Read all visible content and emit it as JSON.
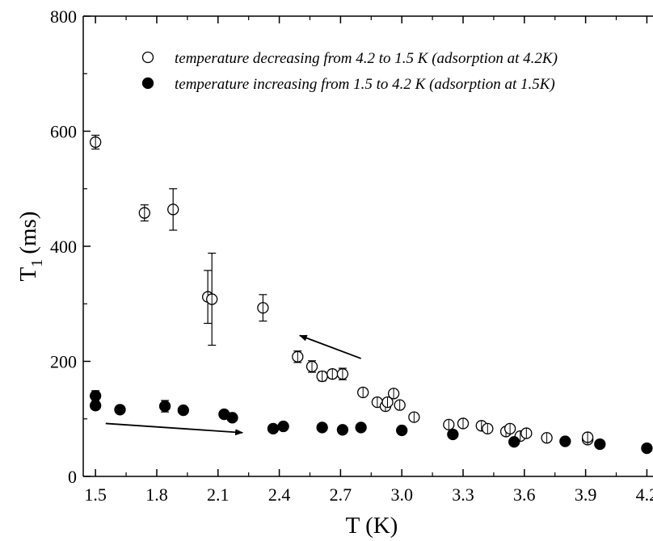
{
  "chart_data": {
    "type": "scatter",
    "xlabel": "T (K)",
    "ylabel_main": "T",
    "ylabel_sub": "1",
    "ylabel_unit": "(ms)",
    "xlim": [
      1.44,
      4.23
    ],
    "ylim": [
      0,
      800
    ],
    "xticks": [
      "1.5",
      "1.8",
      "2.1",
      "2.4",
      "2.7",
      "3.0",
      "3.3",
      "3.6",
      "3.9",
      "4.2"
    ],
    "yticks": [
      "0",
      "200",
      "400",
      "600",
      "800"
    ],
    "grid": false,
    "legend_position": "top",
    "series": [
      {
        "name": "temperature decreasing from 4.2 to 1.5 K",
        "name_suffix": "(adsorption at 4.2K)",
        "marker": "open-circle",
        "points": [
          {
            "x": 1.5,
            "y": 581,
            "err": 12
          },
          {
            "x": 1.74,
            "y": 458,
            "err": 14
          },
          {
            "x": 1.88,
            "y": 464,
            "err": 36
          },
          {
            "x": 2.05,
            "y": 312,
            "err": 46
          },
          {
            "x": 2.07,
            "y": 308,
            "err": 80
          },
          {
            "x": 2.32,
            "y": 293,
            "err": 23
          },
          {
            "x": 2.49,
            "y": 208,
            "err": 10
          },
          {
            "x": 2.56,
            "y": 191,
            "err": 10
          },
          {
            "x": 2.61,
            "y": 174,
            "err": 8
          },
          {
            "x": 2.66,
            "y": 178,
            "err": 7
          },
          {
            "x": 2.71,
            "y": 178,
            "err": 10
          },
          {
            "x": 2.81,
            "y": 146,
            "err": 5
          },
          {
            "x": 2.88,
            "y": 129,
            "err": 5
          },
          {
            "x": 2.92,
            "y": 122,
            "err": 6
          },
          {
            "x": 2.93,
            "y": 129,
            "err": 5
          },
          {
            "x": 2.96,
            "y": 144,
            "err": 5
          },
          {
            "x": 2.99,
            "y": 124,
            "err": 5
          },
          {
            "x": 3.06,
            "y": 103,
            "err": 4
          },
          {
            "x": 3.23,
            "y": 90,
            "err": 4
          },
          {
            "x": 3.3,
            "y": 92,
            "err": 4
          },
          {
            "x": 3.39,
            "y": 88,
            "err": 4
          },
          {
            "x": 3.42,
            "y": 83,
            "err": 3
          },
          {
            "x": 3.51,
            "y": 78,
            "err": 3
          },
          {
            "x": 3.53,
            "y": 83,
            "err": 4
          },
          {
            "x": 3.58,
            "y": 70,
            "err": 3
          },
          {
            "x": 3.61,
            "y": 75,
            "err": 3
          },
          {
            "x": 3.71,
            "y": 67,
            "err": 3
          },
          {
            "x": 3.91,
            "y": 64,
            "err": 3
          },
          {
            "x": 3.91,
            "y": 68,
            "err": 3
          }
        ]
      },
      {
        "name": "temperature increasing from 1.5 to 4.2 K",
        "name_suffix": "(adsorption at 1.5K)",
        "marker": "filled-circle",
        "points": [
          {
            "x": 1.5,
            "y": 123,
            "err": 6
          },
          {
            "x": 1.5,
            "y": 140,
            "err": 9
          },
          {
            "x": 1.62,
            "y": 116,
            "err": 5
          },
          {
            "x": 1.84,
            "y": 122,
            "err": 10
          },
          {
            "x": 1.93,
            "y": 115,
            "err": 6
          },
          {
            "x": 2.13,
            "y": 108,
            "err": 4
          },
          {
            "x": 2.17,
            "y": 102,
            "err": 4
          },
          {
            "x": 2.37,
            "y": 83,
            "err": 3
          },
          {
            "x": 2.42,
            "y": 87,
            "err": 4
          },
          {
            "x": 2.61,
            "y": 85,
            "err": 3
          },
          {
            "x": 2.71,
            "y": 81,
            "err": 3
          },
          {
            "x": 2.8,
            "y": 85,
            "err": 4
          },
          {
            "x": 3.0,
            "y": 80,
            "err": 3
          },
          {
            "x": 3.25,
            "y": 73,
            "err": 3
          },
          {
            "x": 3.55,
            "y": 60,
            "err": 3
          },
          {
            "x": 3.8,
            "y": 61,
            "err": 3
          },
          {
            "x": 3.97,
            "y": 56,
            "err": 3
          },
          {
            "x": 4.2,
            "y": 49,
            "err": 4
          }
        ]
      }
    ],
    "annotations": [
      {
        "type": "arrow",
        "from": [
          2.8,
          205
        ],
        "to": [
          2.5,
          245
        ]
      },
      {
        "type": "arrow",
        "from": [
          1.55,
          92
        ],
        "to": [
          2.22,
          76
        ]
      }
    ]
  }
}
